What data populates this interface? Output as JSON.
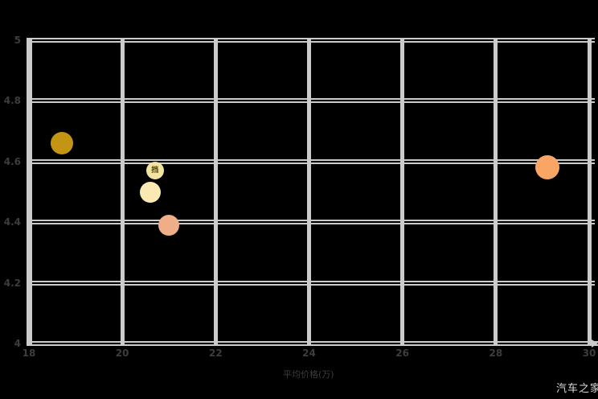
{
  "watermark": {
    "text": "汽车之家"
  },
  "chart_data": {
    "type": "scatter",
    "title": "",
    "xlabel": "平均价格(万)",
    "ylabel": "",
    "xlim": [
      18,
      30
    ],
    "ylim": [
      4,
      5
    ],
    "xticks": [
      18,
      20,
      22,
      24,
      26,
      28,
      30
    ],
    "yticks": [
      4,
      4.2,
      4.4,
      4.6,
      4.8,
      5
    ],
    "grid": true,
    "legend": "none",
    "points": [
      {
        "x": 18.7,
        "y": 4.66,
        "radius": 14,
        "color": "#C39512",
        "label": ""
      },
      {
        "x": 20.7,
        "y": 4.57,
        "radius": 11,
        "color": "#F2E49E",
        "label": "挡"
      },
      {
        "x": 20.6,
        "y": 4.5,
        "radius": 13,
        "color": "#FAE9B2",
        "label": ""
      },
      {
        "x": 21.0,
        "y": 4.39,
        "radius": 13,
        "color": "#EFAE88",
        "label": ""
      },
      {
        "x": 29.1,
        "y": 4.58,
        "radius": 15,
        "color": "#F8A566",
        "label": ""
      }
    ],
    "colors": {
      "background": "#000000",
      "grid": "#CBCBCB",
      "tick_label": "#3D3D3D",
      "axis_title": "#3D3D3D",
      "watermark": "#DBDBDB"
    }
  }
}
